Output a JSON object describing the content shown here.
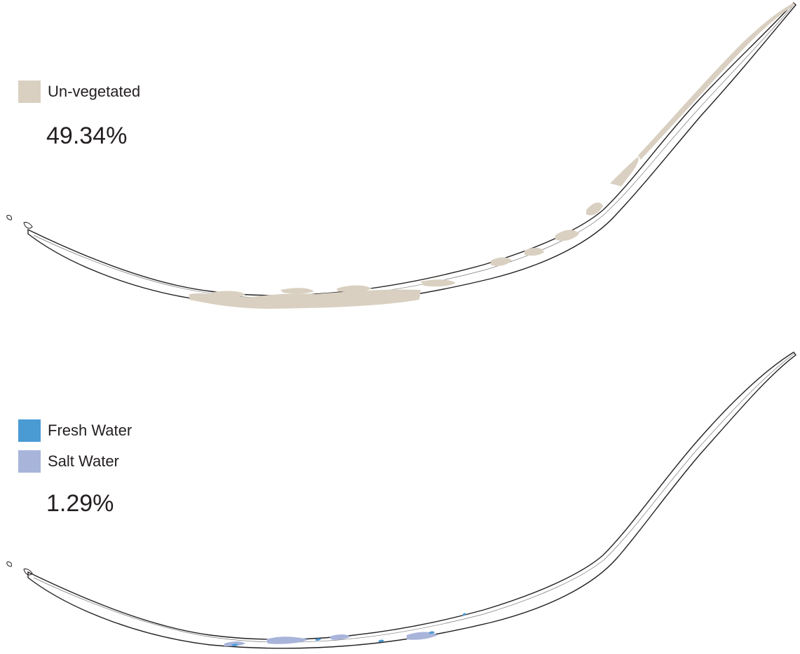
{
  "panels": {
    "top": {
      "legend": [
        {
          "label": "Un-vegetated",
          "color": "#d9d0c1"
        }
      ],
      "percent": "49.34%"
    },
    "bottom": {
      "legend": [
        {
          "label": "Fresh Water",
          "color": "#4a9ad4"
        },
        {
          "label": "Salt Water",
          "color": "#a8b4da"
        }
      ],
      "percent": "1.29%"
    }
  },
  "styles": {
    "outline_color": "#231f20",
    "island_fill_color": "#ffffff"
  }
}
